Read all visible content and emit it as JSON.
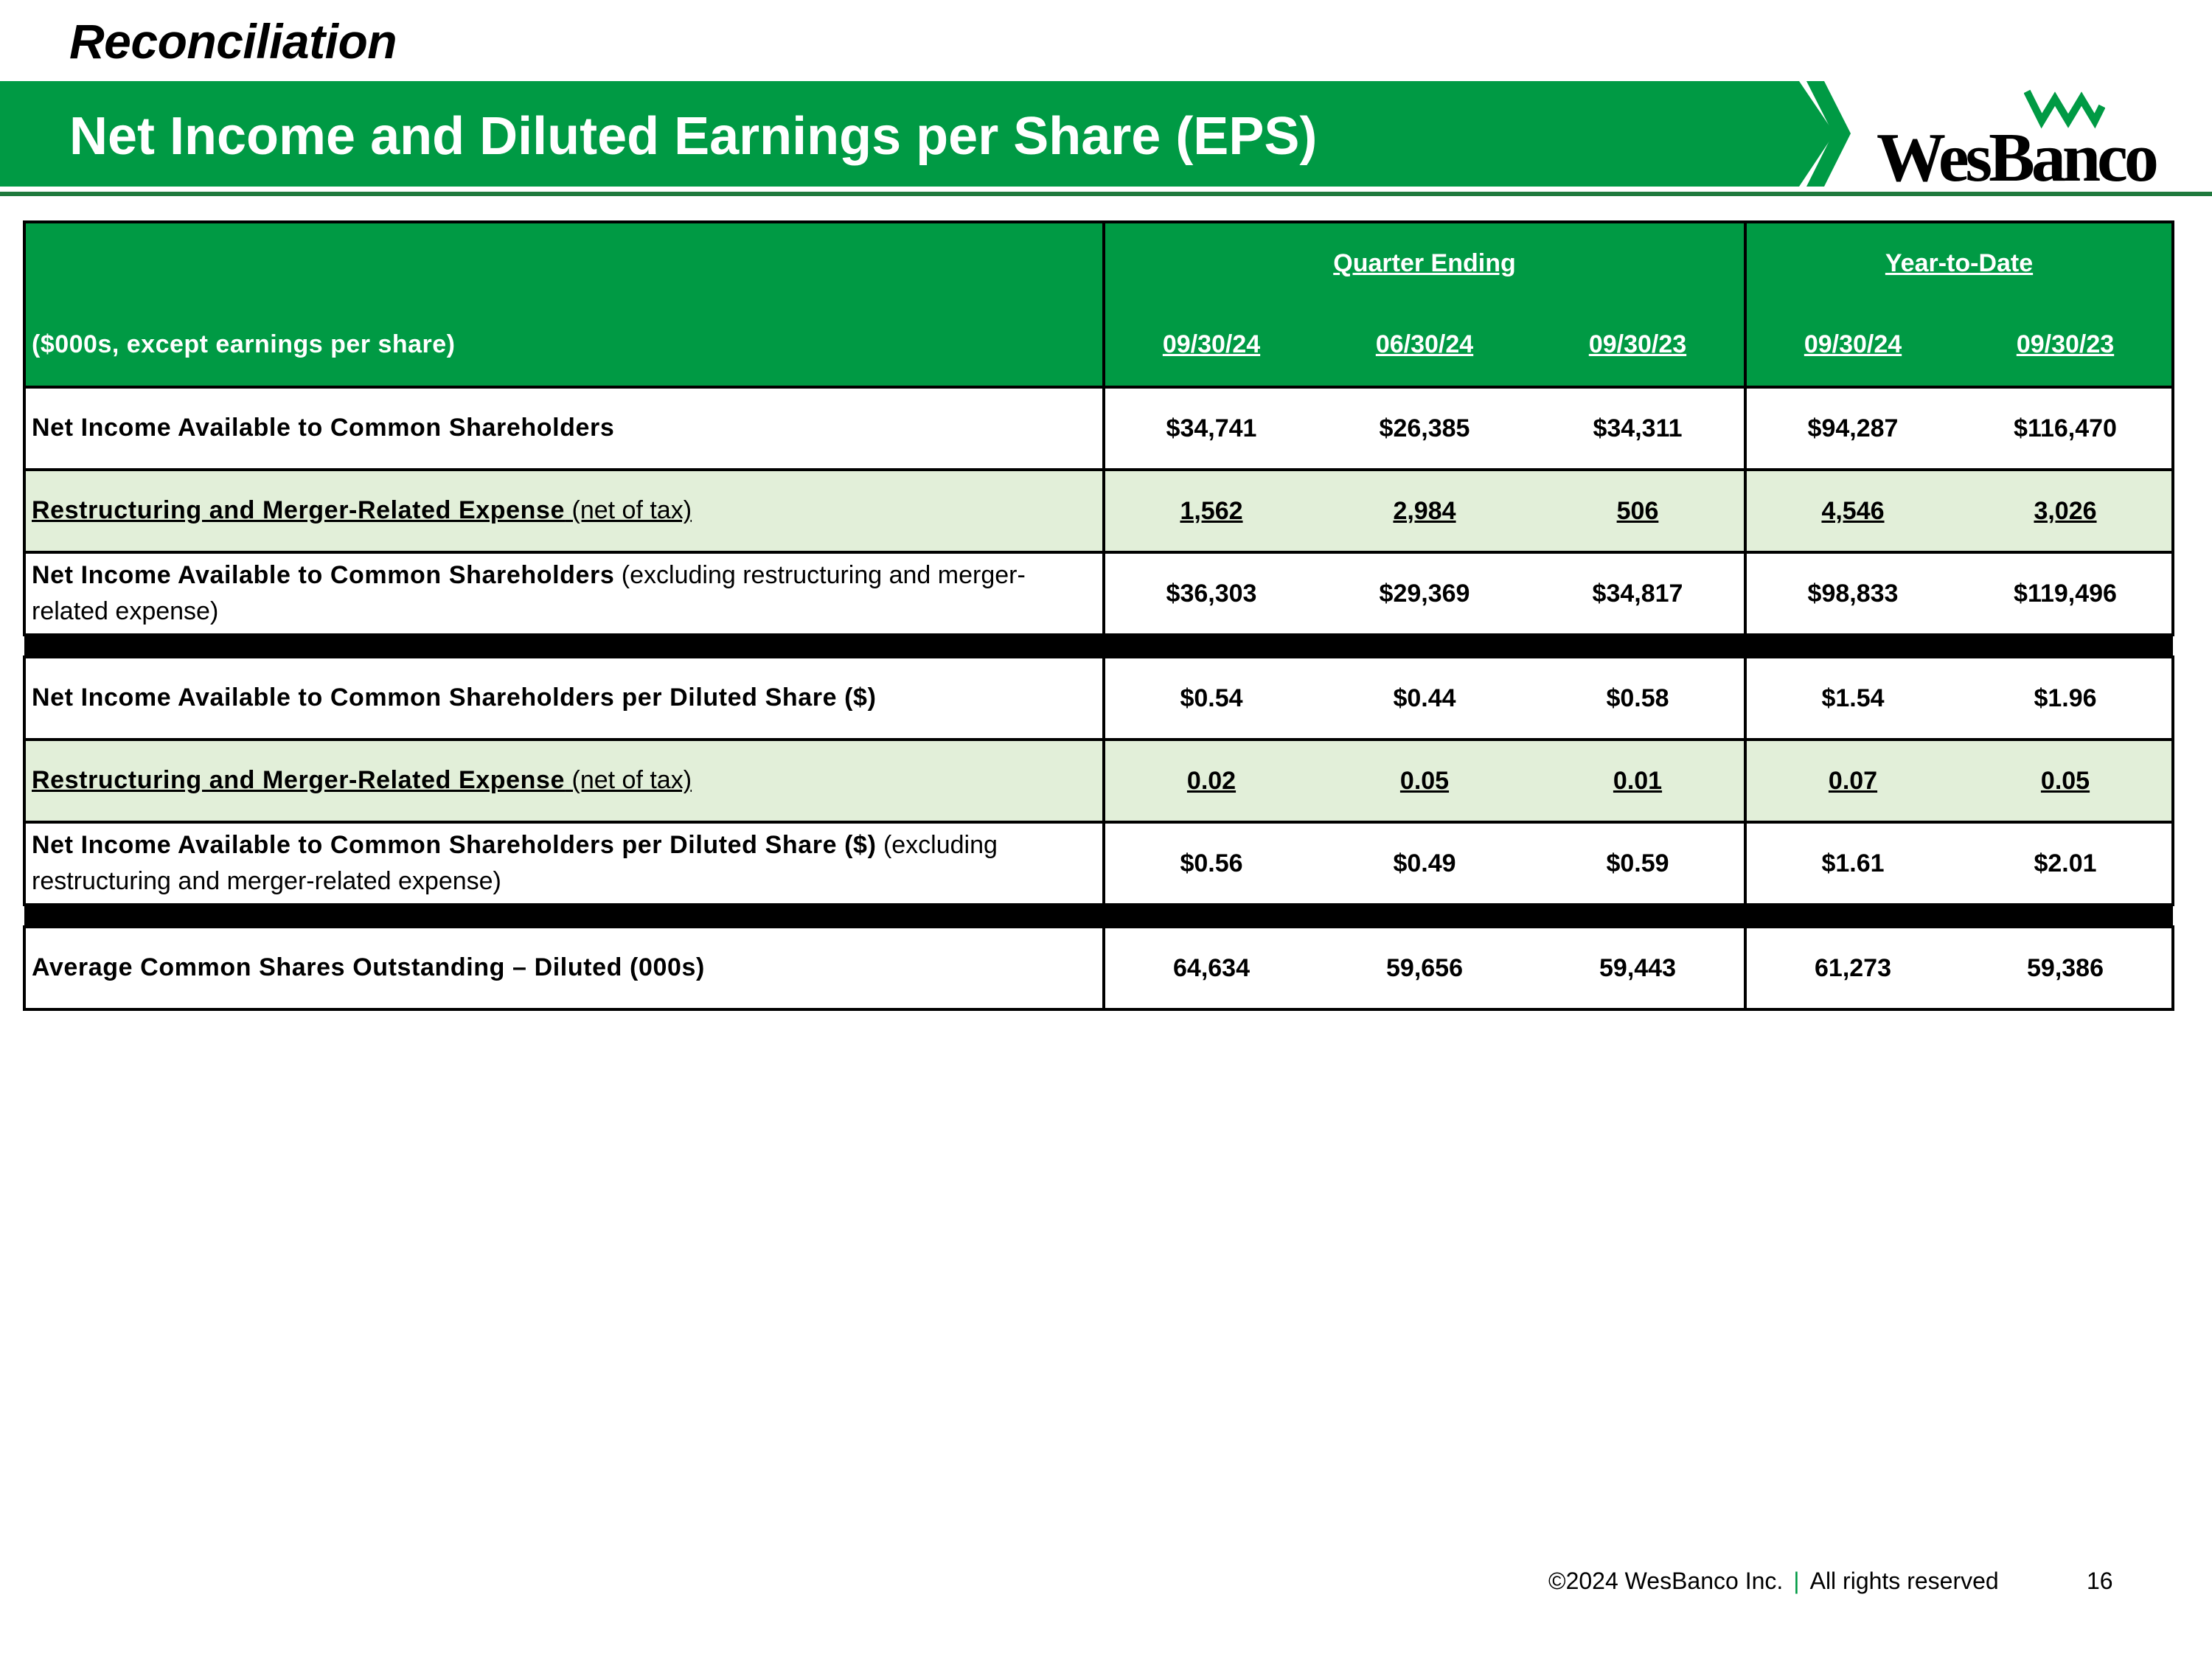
{
  "header": {
    "section": "Reconciliation",
    "title": "Net Income and Diluted Earnings per Share (EPS)",
    "logo_text": "WesBanco",
    "banner_color": "#009a44"
  },
  "table": {
    "unit_label": "($000s, except earnings per share)",
    "groups": {
      "quarter": "Quarter Ending",
      "ytd": "Year-to-Date"
    },
    "periods": [
      "09/30/24",
      "06/30/24",
      "09/30/23",
      "09/30/24",
      "09/30/23"
    ],
    "rows": [
      {
        "label_bold": "Net Income Available to Common Shareholders",
        "label_plain": "",
        "values": [
          "$34,741",
          "$26,385",
          "$34,311",
          "$94,287",
          "$116,470"
        ]
      },
      {
        "label_bold": "Restructuring and Merger-Related Expense",
        "label_plain": " (net of tax)",
        "values": [
          "1,562",
          "2,984",
          "506",
          "4,546",
          "3,026"
        ]
      },
      {
        "label_bold": "Net Income Available to Common Shareholders",
        "label_plain": " (excluding restructuring and merger-related expense)",
        "values": [
          "$36,303",
          "$29,369",
          "$34,817",
          "$98,833",
          "$119,496"
        ]
      },
      {
        "label_bold": "Net Income Available to Common Shareholders per Diluted Share ($)",
        "label_plain": "",
        "values": [
          "$0.54",
          "$0.44",
          "$0.58",
          "$1.54",
          "$1.96"
        ]
      },
      {
        "label_bold": "Restructuring and Merger-Related Expense",
        "label_plain": " (net of tax)",
        "values": [
          "0.02",
          "0.05",
          "0.01",
          "0.07",
          "0.05"
        ]
      },
      {
        "label_bold": "Net Income Available to Common Shareholders per Diluted Share ($)",
        "label_plain": " (excluding restructuring and merger-related expense)",
        "values": [
          "$0.56",
          "$0.49",
          "$0.59",
          "$1.61",
          "$2.01"
        ]
      },
      {
        "label_bold": "Average Common Shares Outstanding – Diluted (000s)",
        "label_plain": "",
        "values": [
          "64,634",
          "59,656",
          "59,443",
          "61,273",
          "59,386"
        ]
      }
    ]
  },
  "footer": {
    "copyright": "©2024 WesBanco Inc.",
    "separator": "|",
    "rights": "All rights reserved",
    "page": "16"
  }
}
